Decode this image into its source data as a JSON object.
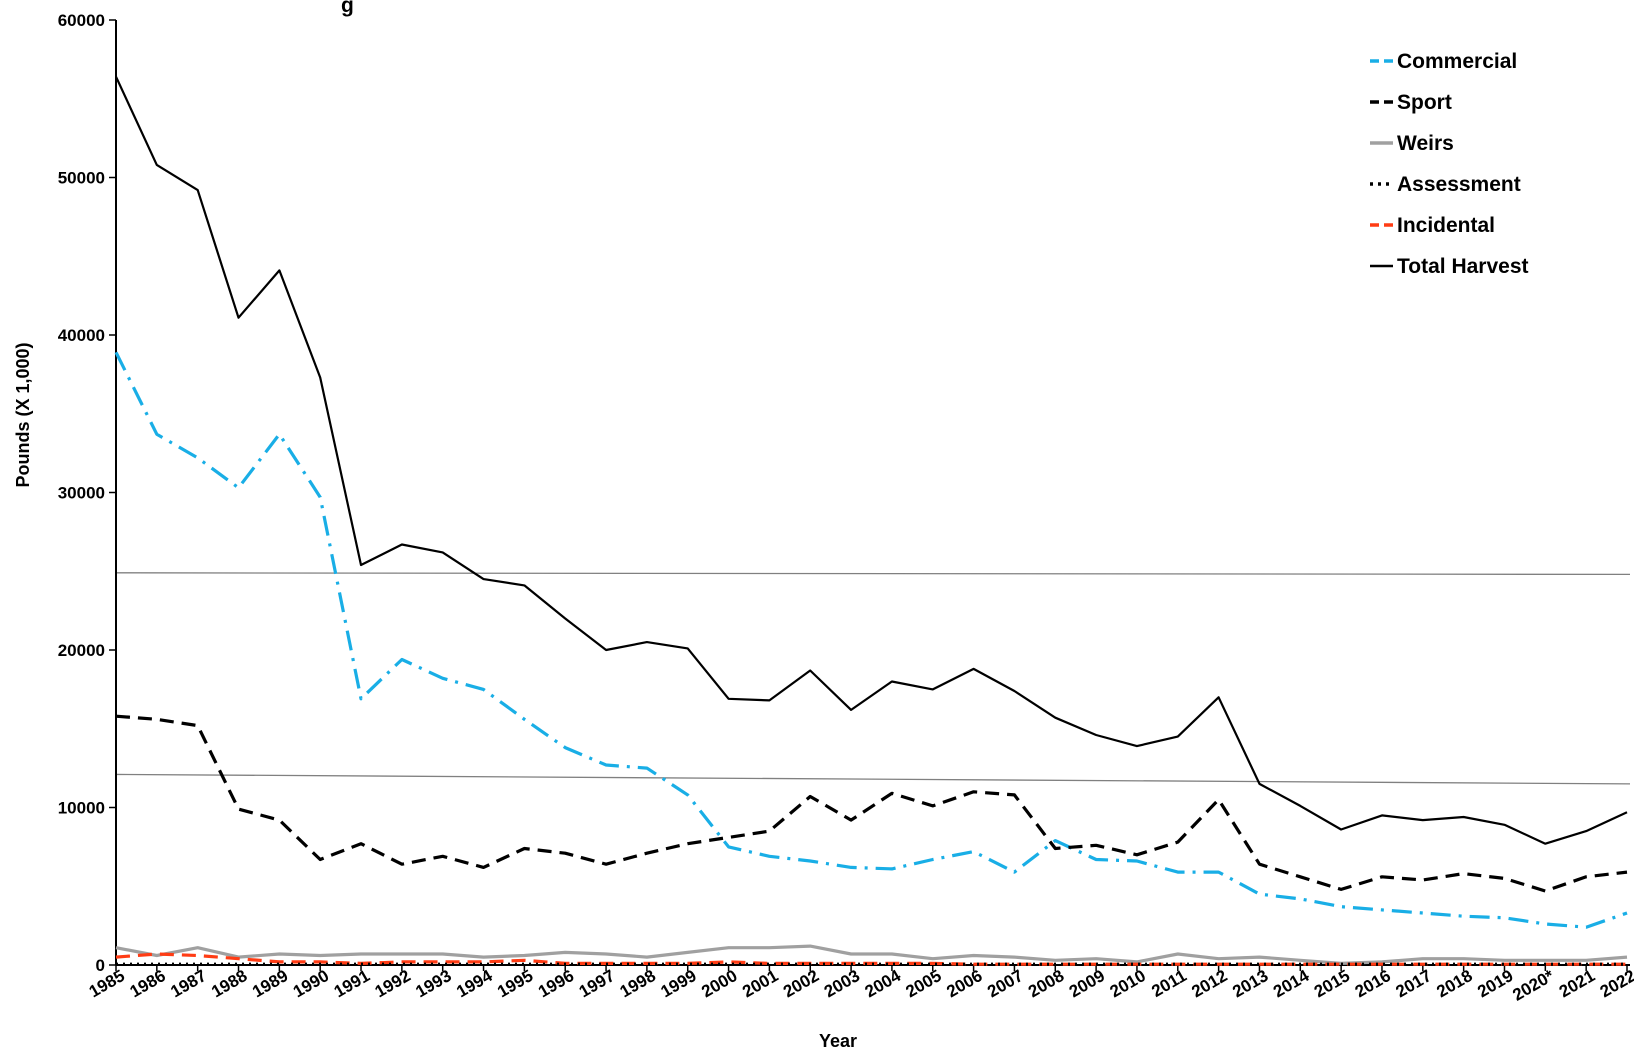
{
  "chart_data": {
    "type": "line",
    "title": "g",
    "xlabel": "Year",
    "ylabel": "Pounds (X 1,000)",
    "ylim": [
      0,
      60000
    ],
    "yticks": [
      0,
      10000,
      20000,
      30000,
      40000,
      50000,
      60000
    ],
    "grid": false,
    "legend_position": "top-right",
    "categories": [
      "1985",
      "1986",
      "1987",
      "1988",
      "1989",
      "1990",
      "1991",
      "1992",
      "1993",
      "1994",
      "1995",
      "1996",
      "1997",
      "1998",
      "1999",
      "2000",
      "2001",
      "2002",
      "2003",
      "2004",
      "2005",
      "2006",
      "2007",
      "2008",
      "2009",
      "2010",
      "2011",
      "2012",
      "2013",
      "2014",
      "2015",
      "2016",
      "2017",
      "2018",
      "2019",
      "2020*",
      "2021",
      "2022"
    ],
    "series": [
      {
        "name": "Commercial",
        "color": "#19aee6",
        "dash": "dashdot",
        "values": [
          38900,
          33700,
          32200,
          30300,
          33700,
          29700,
          16900,
          19400,
          18200,
          17500,
          15600,
          13800,
          12700,
          12500,
          10800,
          7500,
          6900,
          6600,
          6200,
          6100,
          6700,
          7200,
          5900,
          7900,
          6700,
          6600,
          5900,
          5900,
          4500,
          4200,
          3700,
          3500,
          3300,
          3100,
          3000,
          2600,
          2400,
          3300
        ]
      },
      {
        "name": "Sport",
        "color": "#000000",
        "dash": "dash",
        "values": [
          15800,
          15600,
          15200,
          9900,
          9200,
          6700,
          7700,
          6400,
          6900,
          6200,
          7400,
          7100,
          6400,
          7100,
          7700,
          8100,
          8500,
          10700,
          9200,
          10900,
          10100,
          11000,
          10800,
          7400,
          7600,
          7000,
          7800,
          10500,
          6400,
          5600,
          4800,
          5600,
          5400,
          5800,
          5500,
          4700,
          5600,
          5900
        ]
      },
      {
        "name": "Weirs",
        "color": "#a0a0a0",
        "dash": "solid",
        "values": [
          1100,
          600,
          1100,
          500,
          700,
          600,
          700,
          700,
          700,
          500,
          600,
          800,
          700,
          500,
          800,
          1100,
          1100,
          1200,
          700,
          700,
          400,
          600,
          500,
          300,
          400,
          200,
          700,
          400,
          500,
          300,
          100,
          200,
          400,
          400,
          300,
          300,
          300,
          500
        ]
      },
      {
        "name": "Assessment",
        "color": "#000000",
        "dash": "dot",
        "values": [
          50,
          50,
          50,
          50,
          50,
          50,
          50,
          50,
          50,
          50,
          50,
          50,
          50,
          50,
          50,
          50,
          50,
          50,
          50,
          50,
          50,
          50,
          50,
          50,
          50,
          50,
          50,
          50,
          50,
          50,
          50,
          50,
          50,
          50,
          50,
          50,
          50,
          50
        ]
      },
      {
        "name": "Incidental",
        "color": "#ff3c14",
        "dash": "dash",
        "values": [
          500,
          700,
          600,
          400,
          200,
          200,
          100,
          200,
          200,
          200,
          300,
          100,
          100,
          100,
          100,
          200,
          100,
          100,
          100,
          100,
          100,
          50,
          50,
          50,
          50,
          50,
          50,
          50,
          50,
          50,
          50,
          50,
          50,
          50,
          50,
          50,
          50,
          50
        ]
      },
      {
        "name": "Total Harvest",
        "color": "#000000",
        "dash": "solid",
        "values": [
          56400,
          50800,
          49200,
          41100,
          44100,
          37300,
          25400,
          26700,
          26200,
          24500,
          24100,
          22000,
          20000,
          20500,
          20100,
          16900,
          16800,
          18700,
          16200,
          18000,
          17500,
          18800,
          17400,
          15700,
          14600,
          13900,
          14500,
          17000,
          11500,
          10100,
          8600,
          9500,
          9200,
          9400,
          8900,
          7700,
          8500,
          9700
        ]
      }
    ],
    "reference_lines": [
      {
        "start": 24900,
        "end": 24800,
        "color": "#808080"
      },
      {
        "start": 12100,
        "end": 11500,
        "color": "#808080"
      }
    ]
  }
}
